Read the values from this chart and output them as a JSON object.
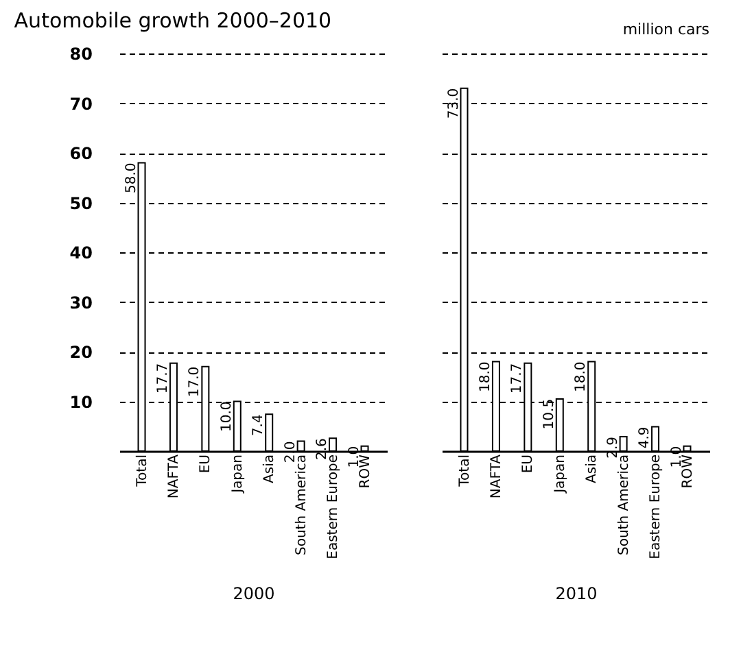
{
  "chart_data": [
    {
      "type": "bar",
      "title": "Automobile growth 2000–2010",
      "xlabel": "2000",
      "categories": [
        "Total",
        "NAFTA",
        "EU",
        "Japan",
        "Asia",
        "South America",
        "Eastern Europe",
        "ROW"
      ],
      "series": [
        {
          "color": "#ffffff",
          "values": [
            58,
            17.7,
            17,
            10,
            7.4,
            2,
            2.6,
            1
          ],
          "value_labels": [
            "58.0",
            "17.7",
            "17.0",
            "10.0",
            "7.4",
            "2.0",
            "2.6",
            "1.0"
          ]
        }
      ],
      "ylim": [
        0,
        80
      ],
      "yticks": [
        10,
        20,
        30,
        40,
        50,
        60,
        70,
        80
      ],
      "grid": "y"
    },
    {
      "type": "bar",
      "annotations": [
        "million cars"
      ],
      "xlabel": "2010",
      "categories": [
        "Total",
        "NAFTA",
        "EU",
        "Japan",
        "Asia",
        "South America",
        "Eastern Europe",
        "ROW"
      ],
      "series": [
        {
          "color": "#ffffff",
          "values": [
            73,
            18,
            17.7,
            10.5,
            18,
            2.9,
            4.9,
            1
          ],
          "value_labels": [
            "73.0",
            "18.0",
            "17.7",
            "10.5",
            "18.0",
            "2.9",
            "4.9",
            "1.0"
          ]
        }
      ],
      "ylim": [
        0,
        80
      ],
      "yticks": [
        10,
        20,
        30,
        40,
        50,
        60,
        70,
        80
      ],
      "grid": "y",
      "tick_labels": "x"
    }
  ]
}
